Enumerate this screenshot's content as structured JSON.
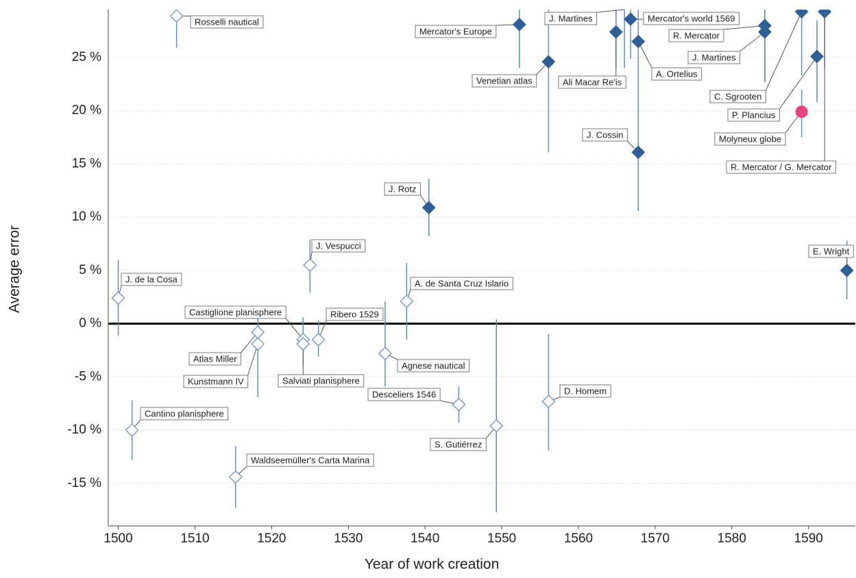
{
  "chart_data": {
    "type": "scatter",
    "x_label": "Year of work creation",
    "y_label": "Average error",
    "xlim": [
      1498.7,
      1596.1
    ],
    "ylim": [
      -19,
      29.5
    ],
    "xticks": [
      1500,
      1510,
      1520,
      1530,
      1540,
      1550,
      1560,
      1570,
      1580,
      1590
    ],
    "yticks": [
      {
        "value": -15,
        "label": "-15 %"
      },
      {
        "value": -10,
        "label": "-10 %"
      },
      {
        "value": -5,
        "label": "-5 %"
      },
      {
        "value": 0,
        "label": "0 %"
      },
      {
        "value": 5,
        "label": "5 %"
      },
      {
        "value": 10,
        "label": "10 %"
      },
      {
        "value": 15,
        "label": "15 %"
      },
      {
        "value": 20,
        "label": "20 %"
      },
      {
        "value": 25,
        "label": "25 %"
      }
    ],
    "grid": true,
    "zero_line": true,
    "error_bar_color": "#5b8fc7",
    "points": [
      {
        "label": "J. de la Cosa",
        "x": 1500,
        "y": 2.4,
        "low": -1.1,
        "high": 6.0,
        "marker": "diamond-open",
        "color": "#6a93c2"
      },
      {
        "label": "Cantino planisphere",
        "x": 1501.8,
        "y": -10.0,
        "low": -12.8,
        "high": -7.2,
        "marker": "diamond-open",
        "color": "#6a93c2"
      },
      {
        "label": "Rosselli nautical",
        "x": 1507.6,
        "y": 28.9,
        "low": 25.9,
        "high": 29.5,
        "marker": "diamond-open",
        "color": "#6a93c2"
      },
      {
        "label": "Waldseemüller's Carta Marina",
        "x": 1515.3,
        "y": -14.4,
        "low": -17.3,
        "high": -11.5,
        "marker": "diamond-open",
        "color": "#6a93c2"
      },
      {
        "label": "Atlas Miller",
        "x": 1518.2,
        "y": -0.8,
        "low": -3.8,
        "high": 1.3,
        "marker": "diamond-open",
        "color": "#6a93c2"
      },
      {
        "label": "Kunstmann IV",
        "x": 1518.2,
        "y": -1.9,
        "low": -6.9,
        "high": 1.3,
        "marker": "diamond-open",
        "color": "#6a93c2"
      },
      {
        "label": "Castiglione planisphere",
        "x": 1524.1,
        "y": -1.5,
        "low": -4.0,
        "high": 0.6,
        "marker": "diamond-open",
        "color": "#6a93c2"
      },
      {
        "label": "Salviati planisphere",
        "x": 1524.1,
        "y": -1.9,
        "low": -4.0,
        "high": 0.5,
        "marker": "diamond-open",
        "color": "#6a93c2"
      },
      {
        "label": "Ribero 1529",
        "x": 1526.1,
        "y": -1.5,
        "low": -3.1,
        "high": 0.3,
        "marker": "diamond-open",
        "color": "#6a93c2"
      },
      {
        "label": "J. Vespucci",
        "x": 1525.0,
        "y": 5.5,
        "low": 2.9,
        "high": 7.9,
        "marker": "diamond-open",
        "color": "#6a93c2"
      },
      {
        "label": "Agnese nautical",
        "x": 1534.8,
        "y": -2.8,
        "low": -5.9,
        "high": 2.1,
        "marker": "diamond-open",
        "color": "#6a93c2"
      },
      {
        "label": "A. de Santa Cruz Islario",
        "x": 1537.6,
        "y": 2.1,
        "low": -1.5,
        "high": 5.7,
        "marker": "diamond-open",
        "color": "#6a93c2"
      },
      {
        "label": "Desceliers 1546",
        "x": 1544.4,
        "y": -7.6,
        "low": -9.3,
        "high": -5.9,
        "marker": "diamond-open",
        "color": "#6a93c2"
      },
      {
        "label": "S. Gutiérrez",
        "x": 1549.3,
        "y": -9.6,
        "low": -17.7,
        "high": 0.4,
        "marker": "diamond-open",
        "color": "#6a93c2"
      },
      {
        "label": "D. Homem",
        "x": 1556.1,
        "y": -7.3,
        "low": -11.9,
        "high": -1.0,
        "marker": "diamond-open",
        "color": "#6a93c2"
      },
      {
        "label": "J. Rotz",
        "x": 1540.5,
        "y": 10.9,
        "low": 8.2,
        "high": 13.6,
        "marker": "diamond-filled",
        "color": "#2e5f96"
      },
      {
        "label": "Venetian atlas",
        "x": 1556.1,
        "y": 24.6,
        "low": 16.1,
        "high": 29.5,
        "marker": "diamond-filled",
        "color": "#2e5f96"
      },
      {
        "label": "Mercator's Europe",
        "x": 1552.3,
        "y": 28.1,
        "low": 24.0,
        "high": 29.5,
        "marker": "diamond-filled",
        "color": "#2e5f96"
      },
      {
        "label": "J. Martines",
        "x": 1566.0,
        "y": 30.5,
        "low": 24.0,
        "high": 31.0,
        "marker": "diamond-filled",
        "color": "#2e5f96"
      },
      {
        "label": "Ali Macar Re'is",
        "x": 1564.9,
        "y": 27.4,
        "low": 24.0,
        "high": 29.5,
        "marker": "diamond-filled",
        "color": "#2e5f96"
      },
      {
        "label": "Mercator's world 1569",
        "x": 1566.8,
        "y": 28.6,
        "low": 24.9,
        "high": 29.5,
        "marker": "diamond-filled",
        "color": "#2e5f96"
      },
      {
        "label": "A. Ortelius",
        "x": 1567.8,
        "y": 26.5,
        "low": 10.6,
        "high": 29.5,
        "marker": "diamond-filled",
        "color": "#2e5f96"
      },
      {
        "label": "J. Cossin",
        "x": 1567.8,
        "y": 16.1,
        "low": 10.6,
        "high": 21.0,
        "marker": "diamond-filled",
        "color": "#2e5f96"
      },
      {
        "label": "R. Mercator",
        "x": 1584.3,
        "y": 28.0,
        "low": 22.7,
        "high": 29.5,
        "marker": "diamond-filled",
        "color": "#2e5f96"
      },
      {
        "label": "J. Martines",
        "x": 1584.3,
        "y": 27.4,
        "low": 22.7,
        "high": 29.5,
        "marker": "diamond-filled",
        "color": "#2e5f96"
      },
      {
        "label": "C. Sgrooten",
        "x": 1589.1,
        "y": 29.3,
        "low": 23.3,
        "high": 29.5,
        "marker": "diamond-filled",
        "color": "#2e5f96"
      },
      {
        "label": "P. Plancius",
        "x": 1591.1,
        "y": 25.1,
        "low": 20.8,
        "high": 28.5,
        "marker": "diamond-filled",
        "color": "#2e5f96"
      },
      {
        "label": "Molyneux globe",
        "x": 1589.1,
        "y": 19.9,
        "low": 17.5,
        "high": 22.0,
        "marker": "circle",
        "color": "#e6447f"
      },
      {
        "label": "R. Mercator / G. Mercator",
        "x": 1592.1,
        "y": 29.3,
        "low": 24.0,
        "high": 29.5,
        "marker": "diamond-filled",
        "color": "#2e5f96"
      },
      {
        "label": "E. Wright",
        "x": 1595.0,
        "y": 5.0,
        "low": 2.3,
        "high": 7.8,
        "marker": "diamond-filled",
        "color": "#2e5f96"
      }
    ]
  }
}
